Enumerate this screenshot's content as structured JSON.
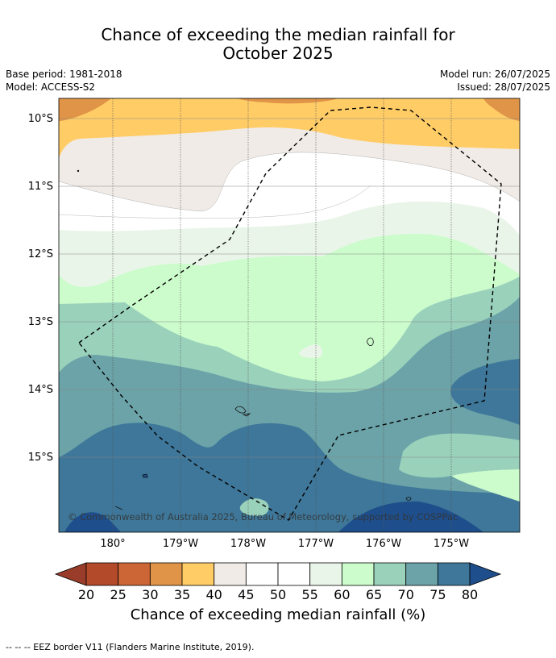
{
  "header": {
    "title_line1": "Chance of exceeding the median rainfall for",
    "title_line2": "October 2025",
    "base_period": "Base period: 1981-2018",
    "model": "Model: ACCESS-S2",
    "model_run": "Model run: 26/07/2025",
    "issued": "Issued: 28/07/2025"
  },
  "map": {
    "lat_labels": [
      "10°S",
      "11°S",
      "12°S",
      "13°S",
      "14°S",
      "15°S"
    ],
    "lon_labels": [
      "180°",
      "179°W",
      "178°W",
      "177°W",
      "176°W",
      "175°W"
    ],
    "copyright": "© Commonwealth of Australia 2025, Bureau of Meteorology, supported by COSPPac",
    "bands": [
      {
        "class": "40-45",
        "color": "#f0ebe6"
      },
      {
        "class": "45-55",
        "color": "#ffffff"
      },
      {
        "class": "55-60",
        "color": "#eaf5ea"
      },
      {
        "class": "60-65",
        "color": "#ccfccc"
      },
      {
        "class": "65-70",
        "color": "#9ad1bb"
      },
      {
        "class": "70-75",
        "color": "#6ba3a8"
      },
      {
        "class": "75-80",
        "color": "#3e7799"
      },
      {
        "class": ">80",
        "color": "#1e4f8c"
      },
      {
        "class": "35-40",
        "color": "#ffcc66"
      },
      {
        "class": "30-35",
        "color": "#e09447"
      }
    ]
  },
  "colorbar": {
    "ticks": [
      "20",
      "25",
      "30",
      "35",
      "40",
      "45",
      "50",
      "55",
      "60",
      "65",
      "70",
      "75",
      "80"
    ],
    "colors": [
      "#b34a2a",
      "#cc6636",
      "#e09447",
      "#ffcc66",
      "#f0ebe6",
      "#ffffff",
      "#ffffff",
      "#eaf5ea",
      "#ccfccc",
      "#9ad1bb",
      "#6ba3a8",
      "#3e7799"
    ],
    "low_extend_color": "#993d2a",
    "high_extend_color": "#1e4f8c",
    "label": "Chance of exceeding median rainfall (%)"
  },
  "footer": {
    "legend_text": "-- -- -- EEZ border V11 (Flanders Marine Institute, 2019)."
  }
}
